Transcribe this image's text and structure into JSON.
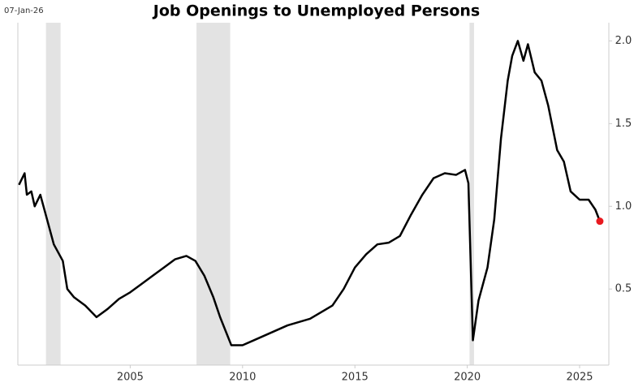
{
  "chart_data": {
    "type": "line",
    "title": "Job Openings to Unemployed Persons",
    "date_stamp": "07-Jan-26",
    "x": [
      2000.05,
      2000.3,
      2000.4,
      2000.6,
      2000.75,
      2001.0,
      2001.3,
      2001.6,
      2002.0,
      2002.2,
      2002.5,
      2003.0,
      2003.5,
      2004.0,
      2004.5,
      2005.0,
      2005.5,
      2006.0,
      2006.5,
      2007.0,
      2007.5,
      2007.9,
      2008.3,
      2008.7,
      2009.0,
      2009.5,
      2010.0,
      2010.5,
      2011.0,
      2012.0,
      2013.0,
      2014.0,
      2014.5,
      2015.0,
      2015.5,
      2016.0,
      2016.5,
      2017.0,
      2017.5,
      2018.0,
      2018.5,
      2019.0,
      2019.5,
      2019.9,
      2020.05,
      2020.25,
      2020.5,
      2020.9,
      2021.2,
      2021.5,
      2021.8,
      2022.0,
      2022.25,
      2022.5,
      2022.7,
      2023.0,
      2023.3,
      2023.6,
      2024.0,
      2024.3,
      2024.6,
      2025.0,
      2025.4,
      2025.7,
      2025.9
    ],
    "series": [
      {
        "color": "#000000",
        "values": [
          1.13,
          1.2,
          1.07,
          1.09,
          1.0,
          1.07,
          0.92,
          0.77,
          0.67,
          0.5,
          0.45,
          0.4,
          0.33,
          0.38,
          0.44,
          0.48,
          0.53,
          0.58,
          0.63,
          0.68,
          0.7,
          0.67,
          0.58,
          0.45,
          0.33,
          0.16,
          0.16,
          0.19,
          0.22,
          0.28,
          0.32,
          0.4,
          0.5,
          0.63,
          0.71,
          0.77,
          0.78,
          0.82,
          0.95,
          1.07,
          1.17,
          1.2,
          1.19,
          1.22,
          1.14,
          0.19,
          0.43,
          0.63,
          0.92,
          1.41,
          1.76,
          1.91,
          2.0,
          1.88,
          1.98,
          1.81,
          1.76,
          1.61,
          1.34,
          1.27,
          1.09,
          1.04,
          1.04,
          0.98,
          0.91
        ]
      }
    ],
    "last_point_color": "#e8191f",
    "recessions": [
      [
        2001.25,
        2001.9
      ],
      [
        2007.95,
        2009.45
      ],
      [
        2020.1,
        2020.3
      ]
    ],
    "recession_color": "#e3e3e3",
    "xlim": [
      2000,
      2026.3
    ],
    "xticks": [
      2005,
      2010,
      2015,
      2020,
      2025
    ],
    "ylim": [
      0.04,
      2.11
    ],
    "yticks": [
      0.5,
      {
        "value": 1,
        "label": "1.0"
      },
      1.5,
      {
        "value": 2,
        "label": "2.0"
      }
    ]
  }
}
